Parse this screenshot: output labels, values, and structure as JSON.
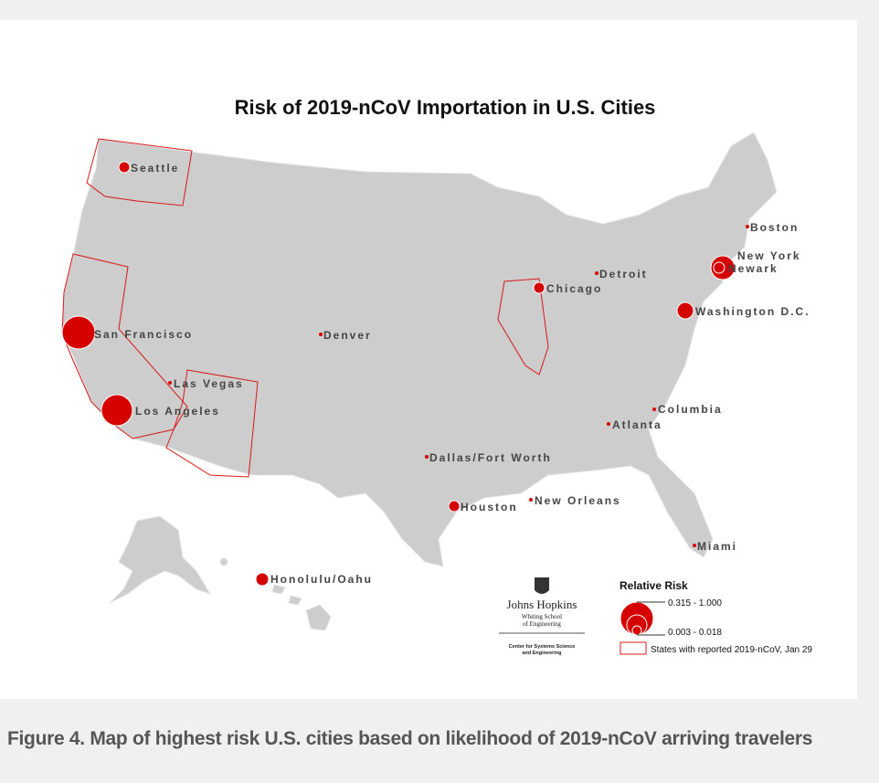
{
  "map": {
    "title": "Risk of 2019-nCoV Importation in U.S. Cities",
    "cities": [
      "Seattle",
      "San Francisco",
      "Las Vegas",
      "Los Angeles",
      "Denver",
      "Chicago",
      "Detroit",
      "Boston",
      "New York",
      "Newark",
      "Washington D.C.",
      "Columbia",
      "Atlanta",
      "Dallas/Fort Worth",
      "Houston",
      "New Orleans",
      "Miami",
      "Honolulu/Oahu"
    ],
    "legend": {
      "title": "Relative Risk",
      "high": "0.315 - 1.000",
      "low": "0.003 - 0.018",
      "states": "States with reported 2019-nCoV, Jan 29"
    },
    "logo": {
      "name": "Johns Hopkins",
      "school": "Whiting School",
      "school2": "of Engineering",
      "center": "Center for Systems Science",
      "center2": "and Engineering"
    }
  },
  "caption": "Figure 4. Map of highest risk U.S. cities based on likelihood of 2019-nCoV arriving travelers"
}
